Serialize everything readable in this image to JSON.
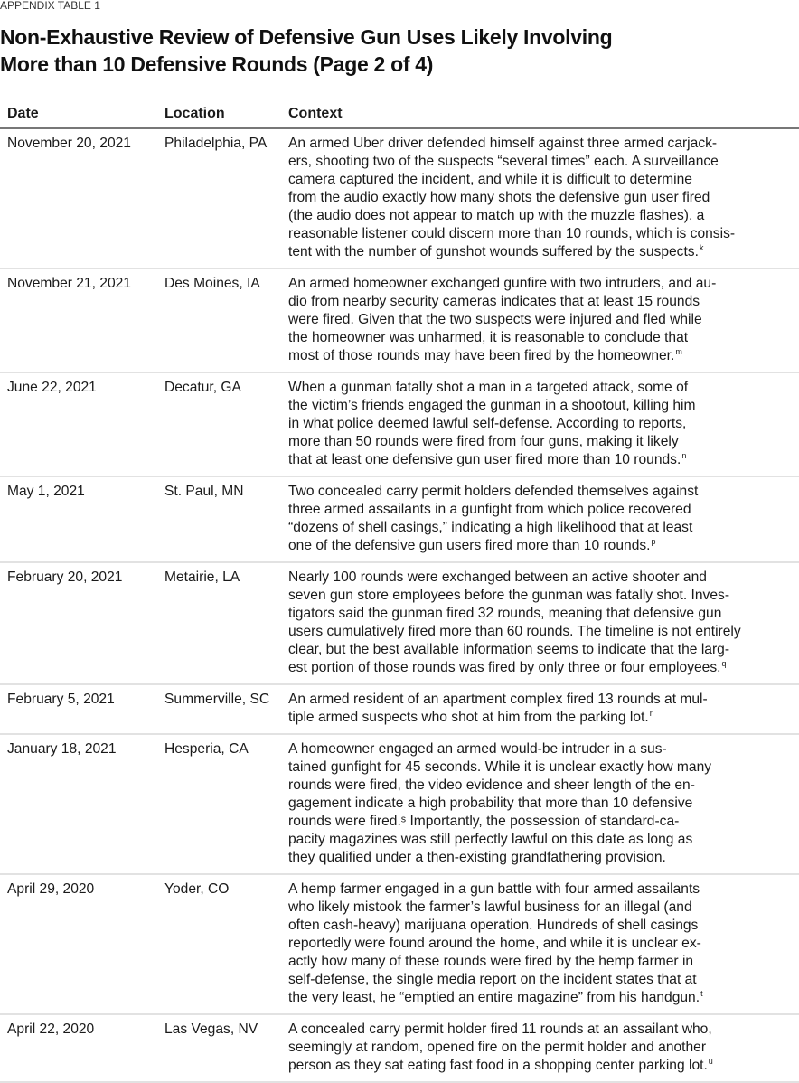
{
  "kicker": "APPENDIX TABLE 1",
  "title_lines": [
    "Non-Exhaustive Review of Defensive Gun Uses Likely Involving",
    "More than 10 Defensive Rounds (Page 2 of 4)"
  ],
  "columns": {
    "date": "Date",
    "location": "Location",
    "context": "Context"
  },
  "rows": [
    {
      "date": "November 20, 2021",
      "location": "Philadelphia, PA",
      "note": "k",
      "lines": [
        "An armed Uber driver defended himself against three armed carjack-",
        "ers, shooting two of the suspects “several times” each. A surveillance",
        "camera captured the incident, and while it is difficult to determine",
        "from the audio exactly how many shots the defensive gun user fired",
        "(the audio does not appear to match up with the muzzle flashes), a",
        "reasonable listener could discern more than 10 rounds, which is consis-",
        "tent with the number of gunshot wounds suffered by the suspects."
      ]
    },
    {
      "date": "November 21, 2021",
      "location": "Des Moines, IA",
      "note": "m",
      "lines": [
        "An armed homeowner exchanged gunfire with two intruders, and au-",
        "dio from nearby security cameras indicates that at least 15 rounds",
        "were fired. Given that the two suspects were injured and fled while",
        "the homeowner was unharmed, it is reasonable to conclude that",
        "most of those rounds may have been fired by the homeowner."
      ]
    },
    {
      "date": "June 22, 2021",
      "location": "Decatur, GA",
      "note": "n",
      "lines": [
        "When a gunman fatally shot a man in a targeted attack, some of",
        "the victim’s friends engaged the gunman in a shootout, killing him",
        "in what police deemed lawful self-defense. According to reports,",
        "more than 50 rounds were fired from four guns, making it likely",
        "that at least one defensive gun user fired more than 10 rounds."
      ]
    },
    {
      "date": "May 1, 2021",
      "location": "St. Paul, MN",
      "note": "p",
      "lines": [
        "Two concealed carry permit holders defended themselves against",
        "three armed assailants in a gunfight from which police recovered",
        "“dozens of shell casings,” indicating a high likelihood that at least",
        "one of the defensive gun users fired more than 10 rounds."
      ]
    },
    {
      "date": "February 20, 2021",
      "location": "Metairie, LA",
      "note": "q",
      "lines": [
        "Nearly 100 rounds were exchanged between an active shooter and",
        "seven gun store employees before the gunman was fatally shot. Inves-",
        "tigators said the gunman fired 32 rounds, meaning that defensive gun",
        "users cumulatively fired more than 60 rounds. The timeline is not entirely",
        "clear, but the best available information seems to indicate that the larg-",
        "est portion of those rounds was fired by only three or four employees."
      ]
    },
    {
      "date": "February 5, 2021",
      "location": "Summerville, SC",
      "note": "r",
      "lines": [
        "An armed resident of an apartment complex fired 13 rounds at mul-",
        "tiple armed suspects who shot at him from the parking lot."
      ]
    },
    {
      "date": "January 18, 2021",
      "location": "Hesperia, CA",
      "note": "",
      "lines": [
        "A homeowner engaged an armed would-be intruder in a sus-",
        "tained gunfight for 45 seconds. While it is unclear exactly how many",
        "rounds were fired, the video evidence and sheer length of the en-",
        "gagement indicate a high probability that more than 10 defensive",
        "rounds were fired.ˢ Importantly, the possession of standard-ca-",
        "pacity magazines was still perfectly lawful on this date as long as",
        "they qualified under a then-existing grandfathering provision."
      ]
    },
    {
      "date": "April 29, 2020",
      "location": "Yoder, CO",
      "note": "t",
      "lines": [
        "A hemp farmer engaged in a gun battle with four armed assailants",
        "who likely mistook the farmer’s lawful business for an illegal (and",
        "often cash-heavy) marijuana operation. Hundreds of shell casings",
        "reportedly were found around the home, and while it is unclear ex-",
        "actly how many of these rounds were fired by the hemp farmer in",
        "self-defense, the single media report on the incident states that at",
        "the very least, he “emptied an entire magazine” from his handgun."
      ]
    },
    {
      "date": "April 22, 2020",
      "location": "Las Vegas, NV",
      "note": "u",
      "lines": [
        "A concealed carry permit holder fired 11 rounds at an assailant who,",
        "seemingly at random, opened fire on the permit holder and another",
        "person as they sat eating fast food in a shopping center parking lot."
      ]
    }
  ]
}
